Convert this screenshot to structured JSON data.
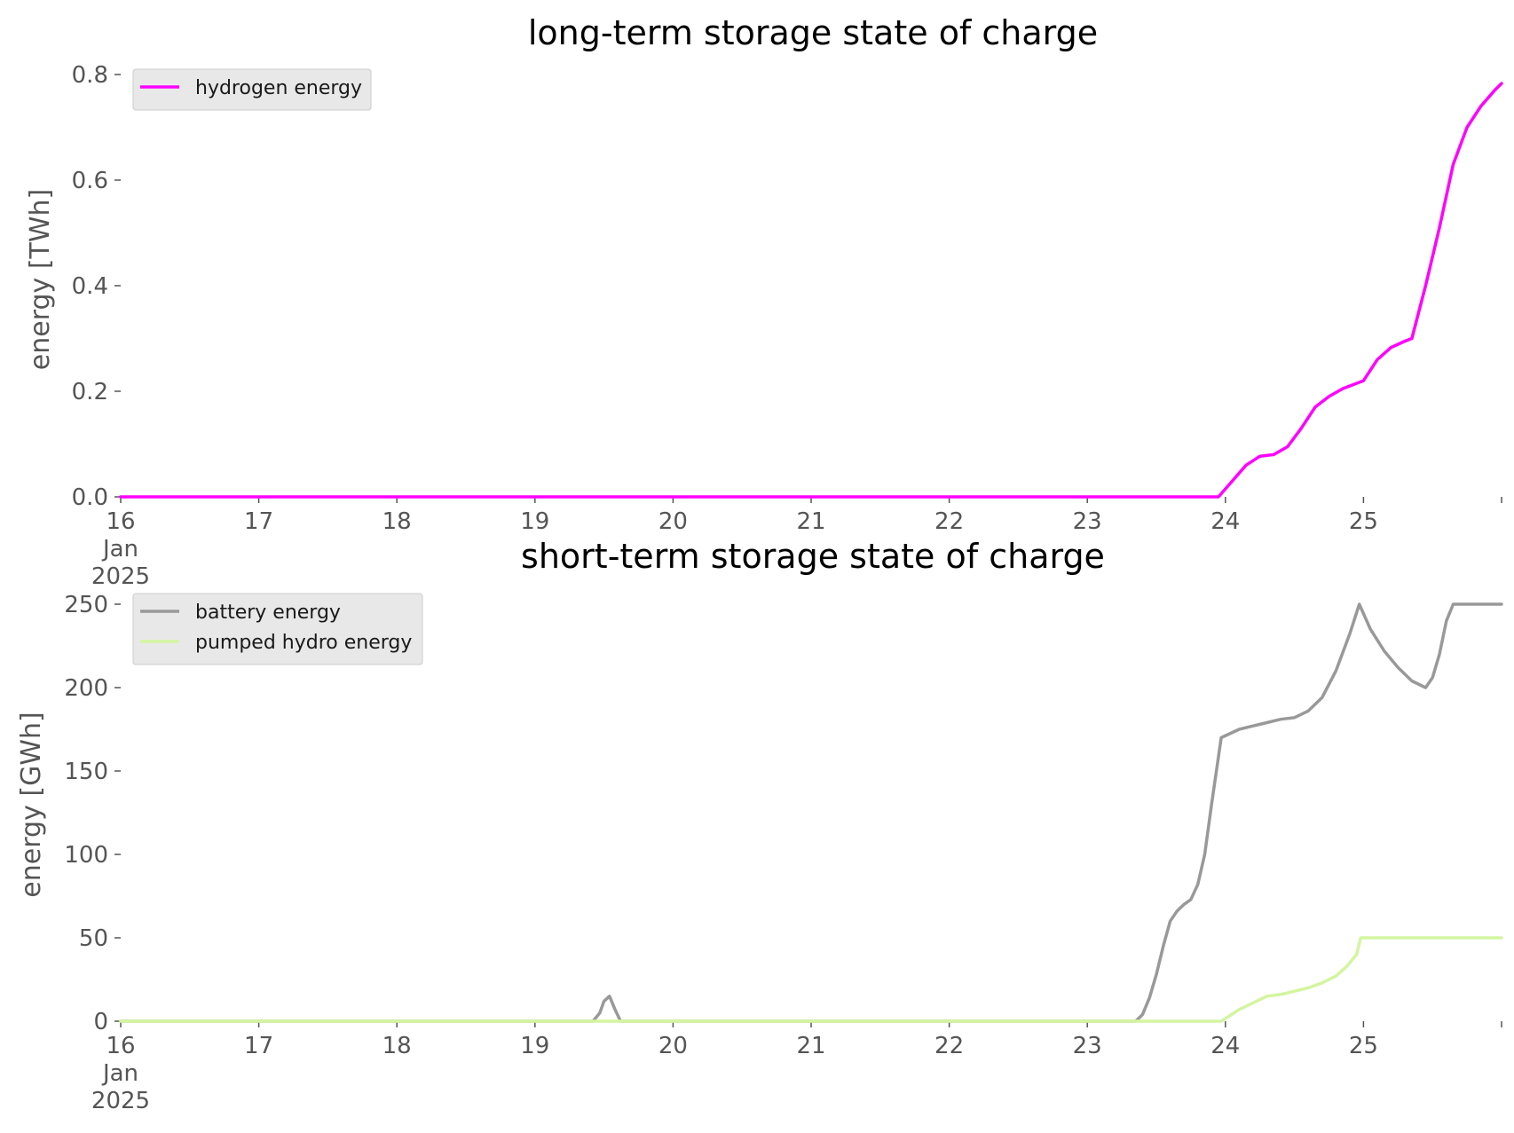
{
  "colors": {
    "hydrogen": "#ff00ff",
    "battery": "#999999",
    "pumped_hydro": "#d4f5a0",
    "axis_text": "#555555",
    "legend_bg": "#e8e8e8"
  },
  "chart_data": [
    {
      "type": "line",
      "title": "long-term storage state of charge",
      "xlabel": "",
      "ylabel": "energy [TWh]",
      "x_ticks": [
        "16\nJan\n2025",
        "17",
        "18",
        "19",
        "20",
        "21",
        "22",
        "23",
        "24",
        "25"
      ],
      "x_tick_days": [
        16,
        17,
        18,
        19,
        20,
        21,
        22,
        23,
        24,
        25
      ],
      "xlim": [
        16,
        26
      ],
      "ylim": [
        0,
        0.8
      ],
      "y_ticks": [
        "0.0",
        "0.2",
        "0.4",
        "0.6",
        "0.8"
      ],
      "y_tick_values": [
        0,
        0.2,
        0.4,
        0.6,
        0.8
      ],
      "grid": false,
      "legend_position": "top-left",
      "series": [
        {
          "name": "hydrogen energy",
          "color": "#ff00ff",
          "points": [
            [
              16,
              0
            ],
            [
              23.95,
              0
            ],
            [
              24.05,
              0.03
            ],
            [
              24.15,
              0.06
            ],
            [
              24.25,
              0.077
            ],
            [
              24.35,
              0.08
            ],
            [
              24.45,
              0.095
            ],
            [
              24.55,
              0.13
            ],
            [
              24.65,
              0.17
            ],
            [
              24.75,
              0.19
            ],
            [
              24.85,
              0.205
            ],
            [
              24.95,
              0.215
            ],
            [
              25.0,
              0.22
            ],
            [
              25.1,
              0.26
            ],
            [
              25.2,
              0.283
            ],
            [
              25.3,
              0.295
            ],
            [
              25.35,
              0.3
            ],
            [
              25.45,
              0.4
            ],
            [
              25.55,
              0.51
            ],
            [
              25.65,
              0.63
            ],
            [
              25.75,
              0.7
            ],
            [
              25.85,
              0.74
            ],
            [
              25.95,
              0.77
            ],
            [
              26.0,
              0.783
            ]
          ]
        }
      ]
    },
    {
      "type": "line",
      "title": "short-term storage state of charge",
      "xlabel": "",
      "ylabel": "energy [GWh]",
      "x_ticks": [
        "16\nJan\n2025",
        "17",
        "18",
        "19",
        "20",
        "21",
        "22",
        "23",
        "24",
        "25"
      ],
      "x_tick_days": [
        16,
        17,
        18,
        19,
        20,
        21,
        22,
        23,
        24,
        25
      ],
      "xlim": [
        16,
        26
      ],
      "ylim": [
        0,
        250
      ],
      "y_ticks": [
        "0",
        "50",
        "100",
        "150",
        "200",
        "250"
      ],
      "y_tick_values": [
        0,
        50,
        100,
        150,
        200,
        250
      ],
      "grid": false,
      "legend_position": "top-left",
      "series": [
        {
          "name": "battery energy",
          "color": "#999999",
          "points": [
            [
              16,
              0
            ],
            [
              19.42,
              0
            ],
            [
              19.47,
              5
            ],
            [
              19.5,
              12
            ],
            [
              19.54,
              15
            ],
            [
              19.58,
              7
            ],
            [
              19.62,
              0
            ],
            [
              23.35,
              0
            ],
            [
              23.4,
              4
            ],
            [
              23.45,
              14
            ],
            [
              23.5,
              28
            ],
            [
              23.55,
              45
            ],
            [
              23.6,
              60
            ],
            [
              23.65,
              66
            ],
            [
              23.7,
              70
            ],
            [
              23.75,
              73
            ],
            [
              23.8,
              82
            ],
            [
              23.85,
              100
            ],
            [
              23.9,
              130
            ],
            [
              23.97,
              170
            ],
            [
              24.1,
              175
            ],
            [
              24.2,
              177
            ],
            [
              24.3,
              179
            ],
            [
              24.4,
              181
            ],
            [
              24.5,
              182
            ],
            [
              24.6,
              186
            ],
            [
              24.7,
              194
            ],
            [
              24.8,
              210
            ],
            [
              24.9,
              232
            ],
            [
              24.97,
              250
            ],
            [
              25.05,
              235
            ],
            [
              25.15,
              222
            ],
            [
              25.25,
              212
            ],
            [
              25.35,
              204
            ],
            [
              25.45,
              200
            ],
            [
              25.5,
              206
            ],
            [
              25.55,
              220
            ],
            [
              25.6,
              240
            ],
            [
              25.65,
              250
            ],
            [
              26.0,
              250
            ]
          ]
        },
        {
          "name": "pumped hydro energy",
          "color": "#d4f5a0",
          "points": [
            [
              16,
              0
            ],
            [
              23.97,
              0
            ],
            [
              24.1,
              7
            ],
            [
              24.2,
              11
            ],
            [
              24.3,
              15
            ],
            [
              24.4,
              16
            ],
            [
              24.5,
              18
            ],
            [
              24.6,
              20
            ],
            [
              24.7,
              23
            ],
            [
              24.8,
              27
            ],
            [
              24.88,
              33
            ],
            [
              24.95,
              40
            ],
            [
              24.98,
              50
            ],
            [
              26.0,
              50
            ]
          ]
        }
      ]
    }
  ]
}
